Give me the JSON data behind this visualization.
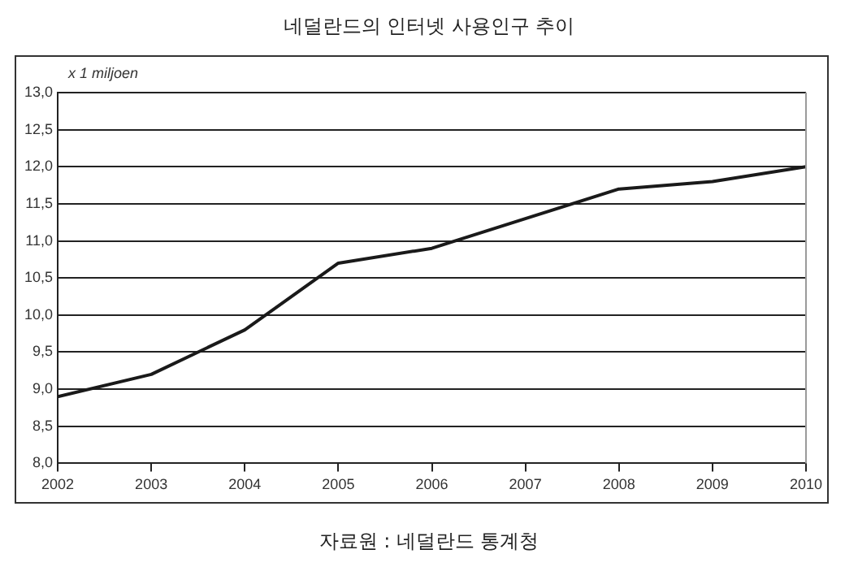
{
  "chart_data": {
    "type": "line",
    "title": "네덜란드의 인터넷 사용인구 추이",
    "ylabel": "x 1 miljoen",
    "annotations": [
      "자료원 : 네덜란드 통계청"
    ],
    "x": [
      2002,
      2003,
      2004,
      2005,
      2006,
      2007,
      2008,
      2009,
      2010
    ],
    "series": [
      {
        "color": "#1a1a1a",
        "values": [
          8.9,
          9.2,
          9.8,
          10.7,
          10.9,
          11.3,
          11.7,
          11.8,
          12.0
        ]
      }
    ],
    "xlim": [
      2002,
      2010
    ],
    "xticks": [
      2002,
      2003,
      2004,
      2005,
      2006,
      2007,
      2008,
      2009,
      2010
    ],
    "ylim": [
      8,
      13
    ],
    "yticks": [
      {
        "value": 8,
        "label": "8,0"
      },
      {
        "value": 8.5,
        "label": "8,5"
      },
      {
        "value": 9,
        "label": "9,0"
      },
      {
        "value": 9.5,
        "label": "9,5"
      },
      {
        "value": 10,
        "label": "10,0"
      },
      {
        "value": 10.5,
        "label": "10,5"
      },
      {
        "value": 11,
        "label": "11,0"
      },
      {
        "value": 11.5,
        "label": "11,5"
      },
      {
        "value": 12,
        "label": "12,0"
      },
      {
        "value": 12.5,
        "label": "12,5"
      },
      {
        "value": 13,
        "label": "13,0"
      }
    ],
    "grid": "y",
    "legend": false,
    "marker": "none",
    "line_style": "solid"
  }
}
